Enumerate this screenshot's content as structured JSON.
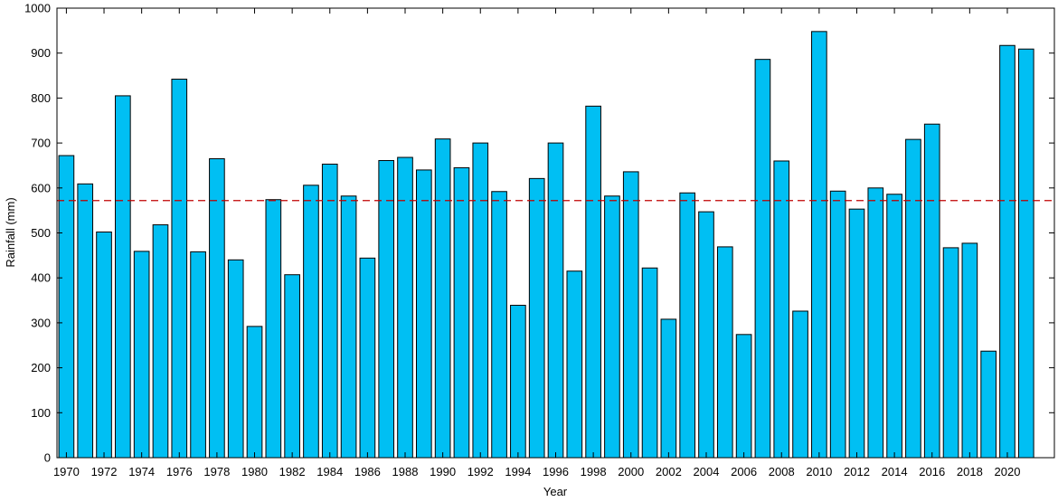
{
  "chart_data": {
    "type": "bar",
    "title": "",
    "xlabel": "Year",
    "ylabel": "Rainfall (mm)",
    "ylim": [
      0,
      1000
    ],
    "yticks": [
      0,
      100,
      200,
      300,
      400,
      500,
      600,
      700,
      800,
      900,
      1000
    ],
    "xlim": [
      1969.5,
      2022.5
    ],
    "xtick_labels": [
      "1970",
      "1972",
      "1974",
      "1976",
      "1978",
      "1980",
      "1982",
      "1984",
      "1986",
      "1988",
      "1990",
      "1992",
      "1994",
      "1996",
      "1998",
      "2000",
      "2002",
      "2004",
      "2006",
      "2008",
      "2010",
      "2012",
      "2014",
      "2016",
      "2018",
      "2020"
    ],
    "categories": [
      1970,
      1971,
      1972,
      1973,
      1974,
      1975,
      1976,
      1977,
      1978,
      1979,
      1980,
      1981,
      1982,
      1983,
      1984,
      1985,
      1986,
      1987,
      1988,
      1989,
      1990,
      1991,
      1992,
      1993,
      1994,
      1995,
      1996,
      1997,
      1998,
      1999,
      2000,
      2001,
      2002,
      2003,
      2004,
      2005,
      2006,
      2007,
      2008,
      2009,
      2010,
      2011,
      2012,
      2013,
      2014,
      2015,
      2016,
      2017,
      2018,
      2019,
      2020,
      2021
    ],
    "values": [
      672,
      609,
      502,
      805,
      459,
      518,
      842,
      458,
      665,
      440,
      292,
      574,
      407,
      606,
      653,
      582,
      444,
      661,
      668,
      640,
      709,
      645,
      700,
      592,
      339,
      621,
      700,
      415,
      782,
      582,
      636,
      422,
      308,
      589,
      547,
      469,
      274,
      886,
      660,
      326,
      948,
      593,
      553,
      600,
      586,
      708,
      742,
      467,
      477,
      237,
      917,
      909
    ],
    "reference_line": {
      "value": 572,
      "style": "dashed",
      "color": "#c00000"
    },
    "bar_color": "#00bff3",
    "bar_edge_color": "#000000",
    "grid": false,
    "legend": "none"
  }
}
